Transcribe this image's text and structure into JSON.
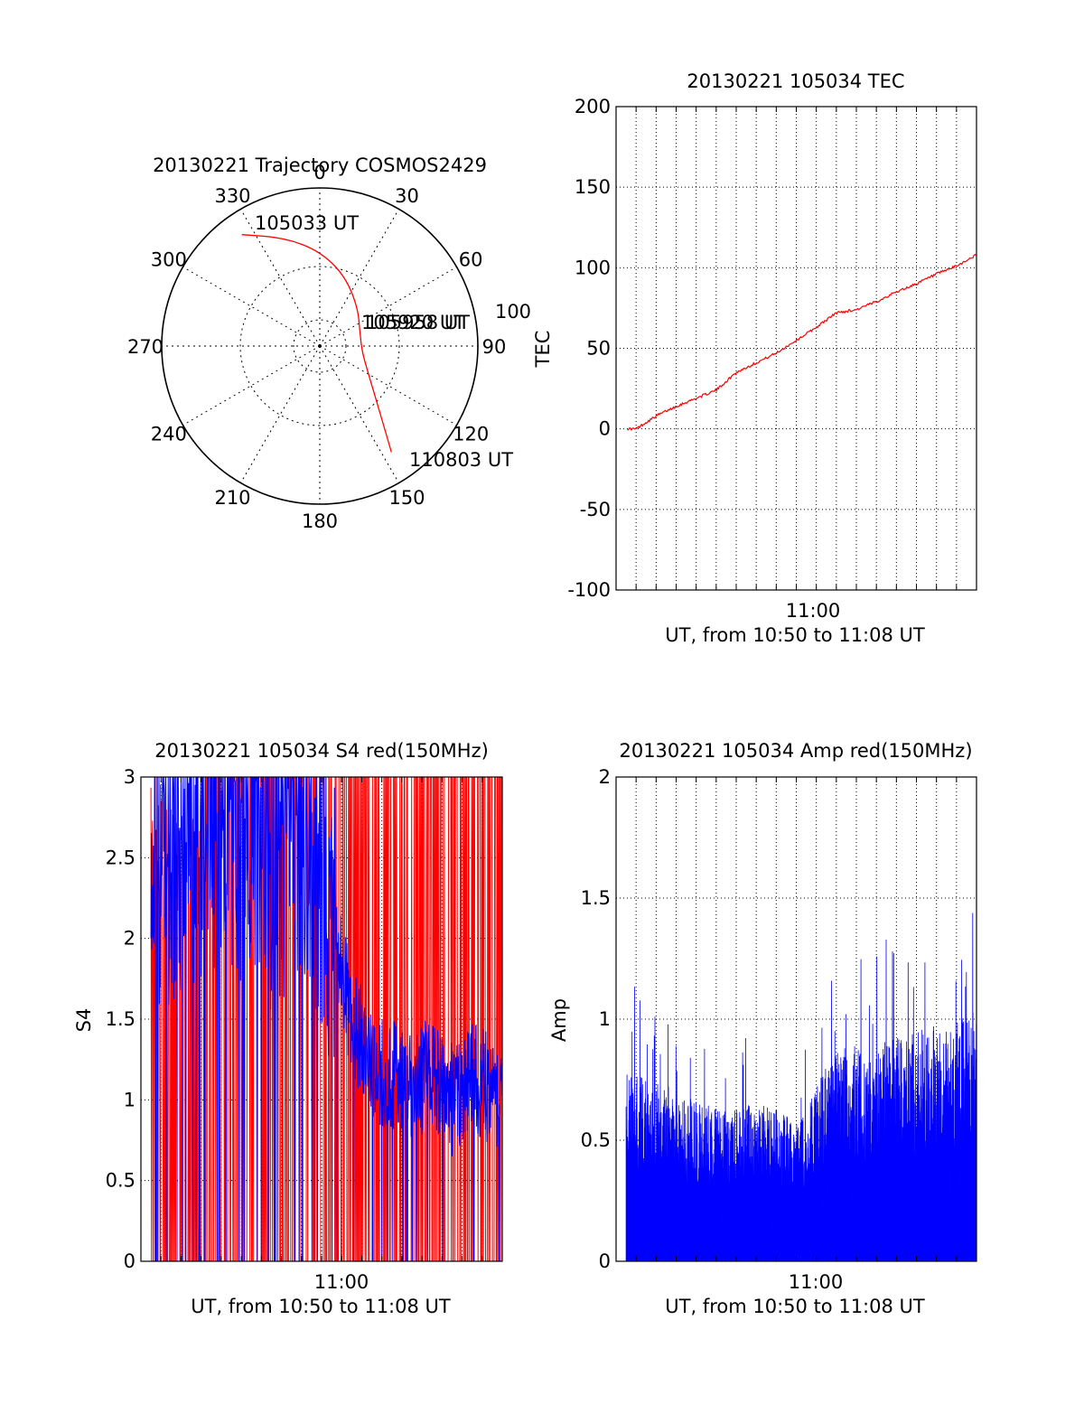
{
  "colors": {
    "red": "#ff0000",
    "blue": "#0000ff",
    "axis": "#000000",
    "grid": "#000000"
  },
  "chart_data": [
    {
      "type": "polar",
      "title": "20130221 Trajectory COSMOS2429",
      "angle_labels": [
        "0",
        "30",
        "60",
        "90",
        "120",
        "150",
        "180",
        "210",
        "240",
        "270",
        "300",
        "330"
      ],
      "radial_tick_label": "100",
      "radial_max": 100,
      "grid": true,
      "annotations": [
        "105033 UT",
        "105920 UT",
        "105958 UT",
        "110803 UT"
      ],
      "series": [
        {
          "color": "#ff0000",
          "points": [
            {
              "az": 325,
              "r": 86
            },
            {
              "az": 342,
              "r": 72
            },
            {
              "az": 0,
              "r": 60
            },
            {
              "az": 20,
              "r": 47
            },
            {
              "az": 45,
              "r": 34
            },
            {
              "az": 70,
              "r": 27
            },
            {
              "az": 98,
              "r": 27
            },
            {
              "az": 122,
              "r": 37
            },
            {
              "az": 137,
              "r": 55
            },
            {
              "az": 146,
              "r": 81
            }
          ]
        }
      ]
    },
    {
      "type": "line",
      "title": "20130221 105034 TEC",
      "xlabel": "UT, from 10:50 to 11:08 UT",
      "ylabel": "TEC",
      "xlim": [
        "10:50",
        "11:08"
      ],
      "x_tick_labels": [
        "11:00"
      ],
      "ylim": [
        -100,
        200
      ],
      "y_tick_labels": [
        "-100",
        "-50",
        "0",
        "50",
        "100",
        "150",
        "200"
      ],
      "grid": true,
      "series": [
        {
          "color": "#ff0000",
          "points": [
            {
              "x": "10:50:34",
              "y": 0
            },
            {
              "x": "10:51:00",
              "y": 0
            },
            {
              "x": "10:52:00",
              "y": 8
            },
            {
              "x": "10:53:00",
              "y": 14
            },
            {
              "x": "10:54:00",
              "y": 19
            },
            {
              "x": "10:55:00",
              "y": 24
            },
            {
              "x": "10:56:00",
              "y": 35
            },
            {
              "x": "10:57:00",
              "y": 41
            },
            {
              "x": "10:58:00",
              "y": 47
            },
            {
              "x": "10:59:00",
              "y": 55
            },
            {
              "x": "11:00:00",
              "y": 63
            },
            {
              "x": "11:01:00",
              "y": 72
            },
            {
              "x": "11:02:00",
              "y": 74
            },
            {
              "x": "11:03:00",
              "y": 79
            },
            {
              "x": "11:04:00",
              "y": 85
            },
            {
              "x": "11:05:00",
              "y": 90
            },
            {
              "x": "11:06:00",
              "y": 96
            },
            {
              "x": "11:07:00",
              "y": 101
            },
            {
              "x": "11:08:00",
              "y": 108
            }
          ]
        }
      ]
    },
    {
      "type": "line",
      "title": "20130221 105034 S4 red(150MHz)",
      "xlabel": "UT, from 10:50 to 11:08 UT",
      "ylabel": "S4",
      "xlim": [
        "10:50",
        "11:08"
      ],
      "x_tick_labels": [
        "11:00"
      ],
      "ylim": [
        0,
        3
      ],
      "y_tick_labels": [
        "0",
        "0.5",
        "1",
        "1.5",
        "2",
        "2.5",
        "3"
      ],
      "grid": true,
      "series": [
        {
          "color": "#ff0000",
          "points": [
            {
              "x": "10:50:30",
              "y": 2.3
            },
            {
              "x": "10:52:00",
              "y": 2.0
            },
            {
              "x": "10:54:00",
              "y": 3.0
            },
            {
              "x": "10:56:00",
              "y": 3.0
            },
            {
              "x": "10:58:00",
              "y": 3.0
            },
            {
              "x": "11:00:00",
              "y": 3.0
            },
            {
              "x": "11:02:00",
              "y": 3.0
            },
            {
              "x": "11:04:00",
              "y": 3.0
            },
            {
              "x": "11:06:00",
              "y": 3.0
            },
            {
              "x": "11:08:00",
              "y": 3.0
            }
          ]
        },
        {
          "color": "#0000ff",
          "points": [
            {
              "x": "10:50:30",
              "y": 2.2
            },
            {
              "x": "10:51:30",
              "y": 2.6
            },
            {
              "x": "10:52:30",
              "y": 2.5
            },
            {
              "x": "10:53:30",
              "y": 2.8
            },
            {
              "x": "10:54:30",
              "y": 2.6
            },
            {
              "x": "10:55:30",
              "y": 2.9
            },
            {
              "x": "10:56:30",
              "y": 2.4
            },
            {
              "x": "10:57:30",
              "y": 2.7
            },
            {
              "x": "10:58:30",
              "y": 2.6
            },
            {
              "x": "10:59:30",
              "y": 2.1
            },
            {
              "x": "11:00:30",
              "y": 1.5
            },
            {
              "x": "11:01:30",
              "y": 1.2
            },
            {
              "x": "11:02:30",
              "y": 1.15
            },
            {
              "x": "11:03:30",
              "y": 1.05
            },
            {
              "x": "11:04:30",
              "y": 1.2
            },
            {
              "x": "11:05:30",
              "y": 1.0
            },
            {
              "x": "11:06:30",
              "y": 1.15
            },
            {
              "x": "11:07:30",
              "y": 1.05
            },
            {
              "x": "11:08:00",
              "y": 1.0
            }
          ]
        }
      ]
    },
    {
      "type": "line",
      "title": "20130221 105034 Amp red(150MHz)",
      "xlabel": "UT, from 10:50 to 11:08 UT",
      "ylabel": "Amp",
      "xlim": [
        "10:50",
        "11:08"
      ],
      "x_tick_labels": [
        "11:00"
      ],
      "ylim": [
        0,
        2
      ],
      "y_tick_labels": [
        "0",
        "0.5",
        "1",
        "1.5",
        "2"
      ],
      "grid": true,
      "series": [
        {
          "color": "#0000ff",
          "points": [
            {
              "x": "10:50:30",
              "y": 0.62
            },
            {
              "x": "10:51:30",
              "y": 0.58
            },
            {
              "x": "10:52:30",
              "y": 0.56
            },
            {
              "x": "10:53:30",
              "y": 0.52
            },
            {
              "x": "10:54:30",
              "y": 0.5
            },
            {
              "x": "10:55:30",
              "y": 0.48
            },
            {
              "x": "10:56:30",
              "y": 0.5
            },
            {
              "x": "10:57:30",
              "y": 0.5
            },
            {
              "x": "10:58:30",
              "y": 0.47
            },
            {
              "x": "10:59:30",
              "y": 0.48
            },
            {
              "x": "11:00:30",
              "y": 0.62
            },
            {
              "x": "11:01:30",
              "y": 0.7
            },
            {
              "x": "11:02:30",
              "y": 0.66
            },
            {
              "x": "11:03:30",
              "y": 0.7
            },
            {
              "x": "11:04:30",
              "y": 0.72
            },
            {
              "x": "11:05:30",
              "y": 0.76
            },
            {
              "x": "11:06:30",
              "y": 0.75
            },
            {
              "x": "11:07:30",
              "y": 0.78
            },
            {
              "x": "11:08:00",
              "y": 0.8
            }
          ]
        }
      ]
    }
  ]
}
